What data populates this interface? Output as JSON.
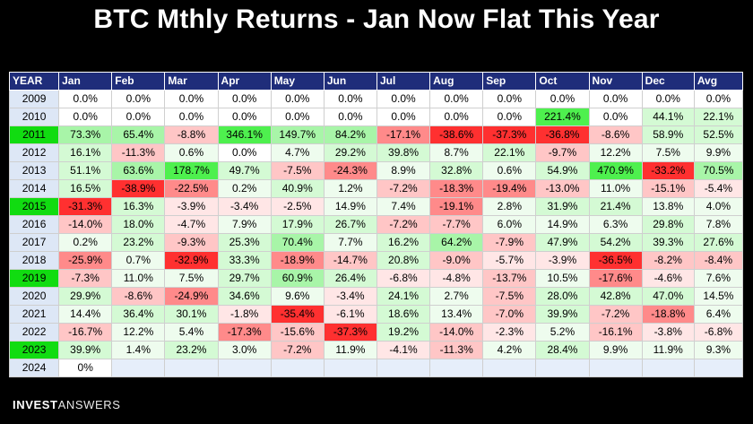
{
  "title": "BTC Mthly Returns - Jan Now Flat This Year",
  "brand": {
    "bold": "INVEST",
    "light": "ANSWERS"
  },
  "chart_data": {
    "type": "table",
    "columns": [
      "YEAR",
      "Jan",
      "Feb",
      "Mar",
      "Apr",
      "May",
      "Jun",
      "Jul",
      "Aug",
      "Sep",
      "Oct",
      "Nov",
      "Dec",
      "Avg"
    ],
    "highlight_years": [
      "2011",
      "2015",
      "2019",
      "2023"
    ],
    "rows": [
      {
        "year": "2009",
        "values": [
          "0.0%",
          "0.0%",
          "0.0%",
          "0.0%",
          "0.0%",
          "0.0%",
          "0.0%",
          "0.0%",
          "0.0%",
          "0.0%",
          "0.0%",
          "0.0%",
          "0.0%"
        ]
      },
      {
        "year": "2010",
        "values": [
          "0.0%",
          "0.0%",
          "0.0%",
          "0.0%",
          "0.0%",
          "0.0%",
          "0.0%",
          "0.0%",
          "0.0%",
          "221.4%",
          "0.0%",
          "44.1%",
          "22.1%"
        ]
      },
      {
        "year": "2011",
        "values": [
          "73.3%",
          "65.4%",
          "-8.8%",
          "346.1%",
          "149.7%",
          "84.2%",
          "-17.1%",
          "-38.6%",
          "-37.3%",
          "-36.8%",
          "-8.6%",
          "58.9%",
          "52.5%"
        ]
      },
      {
        "year": "2012",
        "values": [
          "16.1%",
          "-11.3%",
          "0.6%",
          "0.0%",
          "4.7%",
          "29.2%",
          "39.8%",
          "8.7%",
          "22.1%",
          "-9.7%",
          "12.2%",
          "7.5%",
          "9.9%"
        ]
      },
      {
        "year": "2013",
        "values": [
          "51.1%",
          "63.6%",
          "178.7%",
          "49.7%",
          "-7.5%",
          "-24.3%",
          "8.9%",
          "32.8%",
          "0.6%",
          "54.9%",
          "470.9%",
          "-33.2%",
          "70.5%"
        ]
      },
      {
        "year": "2014",
        "values": [
          "16.5%",
          "-38.9%",
          "-22.5%",
          "0.2%",
          "40.9%",
          "1.2%",
          "-7.2%",
          "-18.3%",
          "-19.4%",
          "-13.0%",
          "11.0%",
          "-15.1%",
          "-5.4%"
        ]
      },
      {
        "year": "2015",
        "values": [
          "-31.3%",
          "16.3%",
          "-3.9%",
          "-3.4%",
          "-2.5%",
          "14.9%",
          "7.4%",
          "-19.1%",
          "2.8%",
          "31.9%",
          "21.4%",
          "13.8%",
          "4.0%"
        ]
      },
      {
        "year": "2016",
        "values": [
          "-14.0%",
          "18.0%",
          "-4.7%",
          "7.9%",
          "17.9%",
          "26.7%",
          "-7.2%",
          "-7.7%",
          "6.0%",
          "14.9%",
          "6.3%",
          "29.8%",
          "7.8%"
        ]
      },
      {
        "year": "2017",
        "values": [
          "0.2%",
          "23.2%",
          "-9.3%",
          "25.3%",
          "70.4%",
          "7.7%",
          "16.2%",
          "64.2%",
          "-7.9%",
          "47.9%",
          "54.2%",
          "39.3%",
          "27.6%"
        ]
      },
      {
        "year": "2018",
        "values": [
          "-25.9%",
          "0.7%",
          "-32.9%",
          "33.3%",
          "-18.9%",
          "-14.7%",
          "20.8%",
          "-9.0%",
          "-5.7%",
          "-3.9%",
          "-36.5%",
          "-8.2%",
          "-8.4%"
        ]
      },
      {
        "year": "2019",
        "values": [
          "-7.3%",
          "11.0%",
          "7.5%",
          "29.7%",
          "60.9%",
          "26.4%",
          "-6.8%",
          "-4.8%",
          "-13.7%",
          "10.5%",
          "-17.6%",
          "-4.6%",
          "7.6%"
        ]
      },
      {
        "year": "2020",
        "values": [
          "29.9%",
          "-8.6%",
          "-24.9%",
          "34.6%",
          "9.6%",
          "-3.4%",
          "24.1%",
          "2.7%",
          "-7.5%",
          "28.0%",
          "42.8%",
          "47.0%",
          "14.5%"
        ]
      },
      {
        "year": "2021",
        "values": [
          "14.4%",
          "36.4%",
          "30.1%",
          "-1.8%",
          "-35.4%",
          "-6.1%",
          "18.6%",
          "13.4%",
          "-7.0%",
          "39.9%",
          "-7.2%",
          "-18.8%",
          "6.4%"
        ]
      },
      {
        "year": "2022",
        "values": [
          "-16.7%",
          "12.2%",
          "5.4%",
          "-17.3%",
          "-15.6%",
          "-37.3%",
          "19.2%",
          "-14.0%",
          "-2.3%",
          "5.2%",
          "-16.1%",
          "-3.8%",
          "-6.8%"
        ]
      },
      {
        "year": "2023",
        "values": [
          "39.9%",
          "1.4%",
          "23.2%",
          "3.0%",
          "-7.2%",
          "11.9%",
          "-4.1%",
          "-11.3%",
          "4.2%",
          "28.4%",
          "9.9%",
          "11.9%",
          "9.3%"
        ]
      },
      {
        "year": "2024",
        "values": [
          "0%"
        ]
      }
    ]
  }
}
